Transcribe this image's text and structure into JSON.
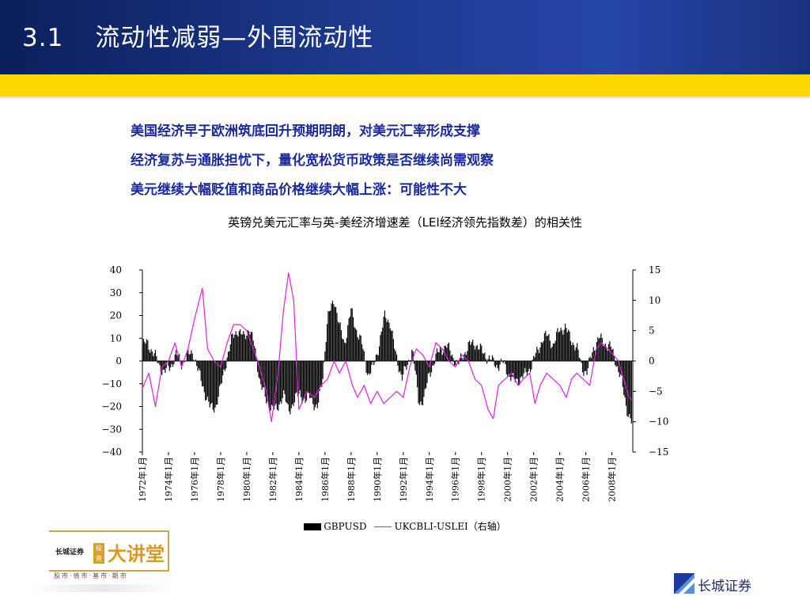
{
  "slide": {
    "number": "3.1",
    "title": "流动性减弱—外围流动性"
  },
  "bullets": [
    "美国经济早于欧洲筑底回升预期明朗，对美元汇率形成支撑",
    "经济复苏与通胀担忧下，量化宽松货币政策是否继续尚需观察",
    "美元继续大幅贬值和商品价格继续大幅上涨：可能性不大"
  ],
  "chart_data": {
    "type": "bar+line",
    "title": "英镑兑美元汇率与英-美经济增速差（LEI经济领先指数差）的相关性",
    "x_tick_labels": [
      "1972年1月",
      "1974年1月",
      "1976年1月",
      "1978年1月",
      "1980年1月",
      "1982年1月",
      "1984年1月",
      "1986年1月",
      "1988年1月",
      "1990年1月",
      "1992年1月",
      "1994年1月",
      "1996年1月",
      "1998年1月",
      "2000年1月",
      "2002年1月",
      "2004年1月",
      "2006年1月",
      "2008年1月"
    ],
    "x_range": [
      "1972年1月",
      "2009年6月"
    ],
    "y_left": {
      "min": -40,
      "max": 40,
      "ticks": [
        40,
        30,
        20,
        10,
        0,
        -10,
        -20,
        -30,
        -40
      ]
    },
    "y_right": {
      "min": -15,
      "max": 15,
      "ticks": [
        15,
        10,
        5,
        0,
        -5,
        -10,
        -15
      ]
    },
    "legend_position": "bottom",
    "series": [
      {
        "name": "GBPUSD",
        "kind": "bar",
        "axis": "left",
        "color": "#000000",
        "points": [
          [
            1972.0,
            7
          ],
          [
            1972.4,
            8
          ],
          [
            1972.9,
            3
          ],
          [
            1973.3,
            -2
          ],
          [
            1973.7,
            -5
          ],
          [
            1974.2,
            -2
          ],
          [
            1974.6,
            3
          ],
          [
            1975.0,
            -1
          ],
          [
            1975.4,
            2
          ],
          [
            1975.9,
            4
          ],
          [
            1976.3,
            -5
          ],
          [
            1976.7,
            -12
          ],
          [
            1977.2,
            -21
          ],
          [
            1977.6,
            -20
          ],
          [
            1978.0,
            -12
          ],
          [
            1978.5,
            2
          ],
          [
            1978.9,
            10
          ],
          [
            1979.3,
            14
          ],
          [
            1979.8,
            10
          ],
          [
            1980.2,
            15
          ],
          [
            1980.6,
            6
          ],
          [
            1981.0,
            -8
          ],
          [
            1981.5,
            -18
          ],
          [
            1981.9,
            -20
          ],
          [
            1982.3,
            -22
          ],
          [
            1982.8,
            -14
          ],
          [
            1983.2,
            -22
          ],
          [
            1983.6,
            -18
          ],
          [
            1984.1,
            -14
          ],
          [
            1984.5,
            -18
          ],
          [
            1984.9,
            -15
          ],
          [
            1985.4,
            -22
          ],
          [
            1985.8,
            -8
          ],
          [
            1986.2,
            18
          ],
          [
            1986.7,
            28
          ],
          [
            1987.1,
            15
          ],
          [
            1987.5,
            8
          ],
          [
            1988.0,
            22
          ],
          [
            1988.4,
            14
          ],
          [
            1988.8,
            8
          ],
          [
            1989.3,
            -6
          ],
          [
            1989.7,
            -3
          ],
          [
            1990.1,
            6
          ],
          [
            1990.6,
            20
          ],
          [
            1991.0,
            17
          ],
          [
            1991.4,
            3
          ],
          [
            1991.9,
            -7
          ],
          [
            1992.3,
            -3
          ],
          [
            1992.7,
            6
          ],
          [
            1993.2,
            -19
          ],
          [
            1993.6,
            -16
          ],
          [
            1994.0,
            -6
          ],
          [
            1994.5,
            2
          ],
          [
            1994.9,
            5
          ],
          [
            1995.3,
            7
          ],
          [
            1995.8,
            2
          ],
          [
            1996.2,
            -2
          ],
          [
            1996.6,
            3
          ],
          [
            1997.1,
            7
          ],
          [
            1997.5,
            8
          ],
          [
            1997.9,
            5
          ],
          [
            1998.4,
            2
          ],
          [
            1998.8,
            0
          ],
          [
            1999.2,
            -2
          ],
          [
            1999.7,
            -1
          ],
          [
            2000.1,
            -6
          ],
          [
            2000.5,
            -9
          ],
          [
            2000.9,
            -8
          ],
          [
            2001.4,
            -6
          ],
          [
            2001.8,
            -2
          ],
          [
            2002.2,
            3
          ],
          [
            2002.7,
            10
          ],
          [
            2003.1,
            11
          ],
          [
            2003.5,
            7
          ],
          [
            2004.0,
            14
          ],
          [
            2004.4,
            15
          ],
          [
            2004.8,
            10
          ],
          [
            2005.3,
            6
          ],
          [
            2005.7,
            -3
          ],
          [
            2006.1,
            -5
          ],
          [
            2006.6,
            6
          ],
          [
            2007.0,
            10
          ],
          [
            2007.4,
            8
          ],
          [
            2007.9,
            6
          ],
          [
            2008.3,
            0
          ],
          [
            2008.7,
            -8
          ],
          [
            2009.1,
            -20
          ],
          [
            2009.5,
            -27
          ]
        ]
      },
      {
        "name": "UKCBLI-USLEI（右轴）",
        "kind": "line",
        "axis": "right",
        "color": "#e020e0",
        "points": [
          [
            1972.0,
            -4.5
          ],
          [
            1972.5,
            -2
          ],
          [
            1973.0,
            -7.5
          ],
          [
            1973.5,
            -1
          ],
          [
            1974.0,
            0
          ],
          [
            1974.5,
            3
          ],
          [
            1975.0,
            -1
          ],
          [
            1975.5,
            2
          ],
          [
            1976.0,
            7
          ],
          [
            1976.6,
            12
          ],
          [
            1977.0,
            2
          ],
          [
            1977.5,
            0
          ],
          [
            1978.0,
            -1
          ],
          [
            1978.5,
            3
          ],
          [
            1979.0,
            6
          ],
          [
            1979.5,
            6
          ],
          [
            1980.0,
            5
          ],
          [
            1980.5,
            2
          ],
          [
            1981.0,
            -1
          ],
          [
            1981.5,
            -5
          ],
          [
            1981.9,
            -10
          ],
          [
            1982.4,
            -2
          ],
          [
            1982.8,
            8
          ],
          [
            1983.2,
            14.5
          ],
          [
            1983.6,
            10
          ],
          [
            1984.0,
            -8
          ],
          [
            1984.6,
            -5
          ],
          [
            1985.2,
            -6
          ],
          [
            1985.7,
            -4
          ],
          [
            1986.2,
            -3
          ],
          [
            1986.7,
            0
          ],
          [
            1987.1,
            -2
          ],
          [
            1987.6,
            0
          ],
          [
            1988.1,
            -4
          ],
          [
            1988.5,
            -6
          ],
          [
            1989.0,
            -4
          ],
          [
            1989.5,
            -7
          ],
          [
            1990.0,
            -5
          ],
          [
            1990.5,
            -7
          ],
          [
            1991.0,
            -6
          ],
          [
            1991.5,
            -5
          ],
          [
            1992.0,
            -6
          ],
          [
            1992.5,
            -1
          ],
          [
            1993.0,
            2
          ],
          [
            1993.5,
            1
          ],
          [
            1994.0,
            -1
          ],
          [
            1994.5,
            3
          ],
          [
            1995.0,
            2
          ],
          [
            1995.5,
            0
          ],
          [
            1996.0,
            -1
          ],
          [
            1996.5,
            1
          ],
          [
            1997.0,
            0
          ],
          [
            1997.5,
            -3
          ],
          [
            1998.0,
            -4
          ],
          [
            1998.5,
            -8
          ],
          [
            1998.9,
            -9.5
          ],
          [
            1999.3,
            -4
          ],
          [
            1999.8,
            -3
          ],
          [
            2000.3,
            -2
          ],
          [
            2000.8,
            -4
          ],
          [
            2001.2,
            -3
          ],
          [
            2001.7,
            -2
          ],
          [
            2002.1,
            -7
          ],
          [
            2002.5,
            -4
          ],
          [
            2003.0,
            -2
          ],
          [
            2003.5,
            -3
          ],
          [
            2004.0,
            -4
          ],
          [
            2004.5,
            -6
          ],
          [
            2004.9,
            -3
          ],
          [
            2005.3,
            -2
          ],
          [
            2005.8,
            -3
          ],
          [
            2006.3,
            -4
          ],
          [
            2006.8,
            2
          ],
          [
            2007.2,
            3
          ],
          [
            2007.7,
            2
          ],
          [
            2008.1,
            1
          ],
          [
            2008.5,
            0
          ],
          [
            2008.9,
            -3
          ],
          [
            2009.3,
            -6
          ],
          [
            2009.6,
            -6.5
          ]
        ]
      }
    ]
  },
  "footer": {
    "logo_small": "长城证券",
    "logo_tou": "投资",
    "logo_main": "大讲堂",
    "logo_sub": "股市·债市·基市·期市",
    "company": "长城证券"
  }
}
